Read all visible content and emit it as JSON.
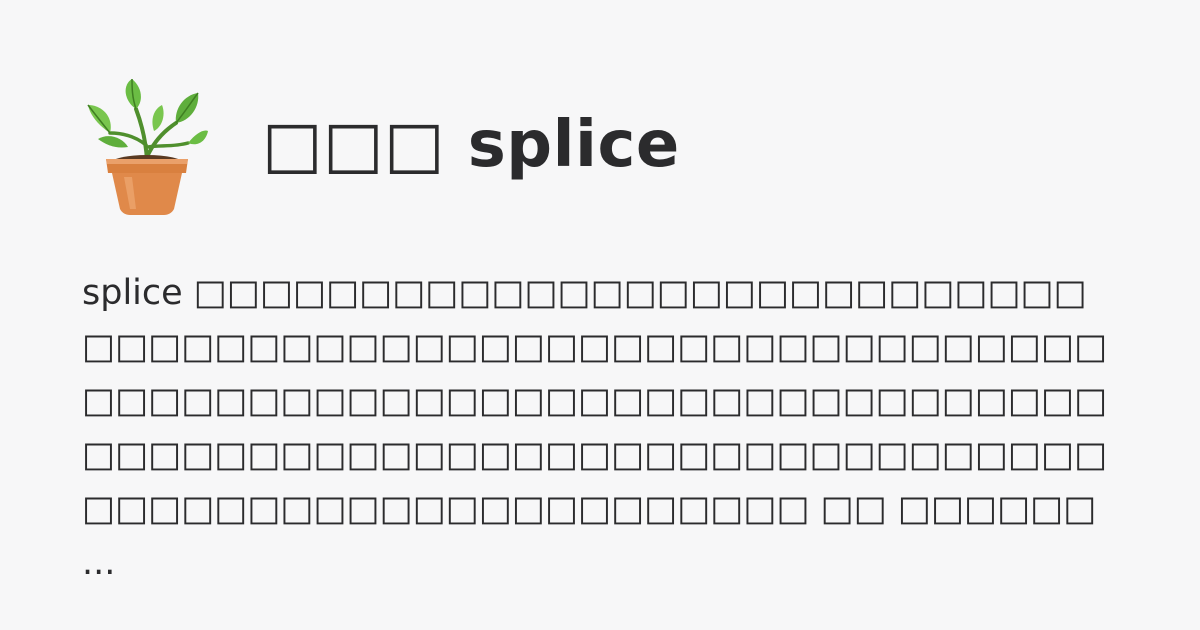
{
  "header": {
    "icon": "potted-plant-icon",
    "title": "□□□ splice"
  },
  "excerpt": {
    "text": "splice □□□□□□□□□□□□□□□□□□□□□□□□□□□□□□□□□□□□□□□□□□□□□□□□□□□□□□□□□□□□□□□□□□□□□□□□□□□□□□□□□□□□□□□□□□□□□□□□□□□□□□□□□□□□□□□□□□□□□□□□□□□□□□□□□□□□□□□□□□□□□□ □□ □□□□□□ ..."
  },
  "colors": {
    "background": "#f7f7f8",
    "text": "#2b2b2d",
    "pot": "#e0894a",
    "leaf": "#5fae3c"
  }
}
